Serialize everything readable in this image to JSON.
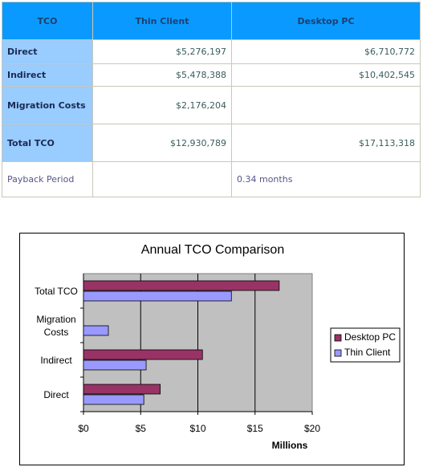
{
  "table": {
    "header": [
      "TCO",
      "Thin Client",
      "Desktop PC"
    ],
    "rows": [
      [
        "Direct",
        "$5,276,197",
        "$6,710,772"
      ],
      [
        "Indirect",
        "$5,478,388",
        "$10,402,545"
      ],
      [
        "Migration Costs",
        "$2,176,204",
        null
      ],
      [
        "Total TCO",
        "$12,930,789",
        "$17,113,318"
      ],
      [
        "Payback Period",
        null,
        "0.34 months"
      ]
    ]
  },
  "chart_data": {
    "type": "hbar",
    "title": "Annual TCO Comparison",
    "categories": [
      "Direct",
      "Indirect",
      "Migration Costs",
      "Total TCO"
    ],
    "series": [
      {
        "name": "Desktop PC",
        "color": "#993366",
        "values": [
          6.710772,
          10.402545,
          null,
          17.113318
        ]
      },
      {
        "name": "Thin Client",
        "color": "#9999ff",
        "values": [
          5.276197,
          5.478388,
          2.176204,
          12.930789
        ]
      }
    ],
    "xlim": [
      0,
      20
    ],
    "xticks": [
      {
        "value": 0,
        "label": "$0"
      },
      {
        "value": 5,
        "label": "$5"
      },
      {
        "value": 10,
        "label": "$10"
      },
      {
        "value": 15,
        "label": "$15"
      },
      {
        "value": 20,
        "label": "$20"
      }
    ],
    "x_label": "Millions",
    "grid": true,
    "plot_background": "#c0c0c0",
    "legend": "right"
  }
}
